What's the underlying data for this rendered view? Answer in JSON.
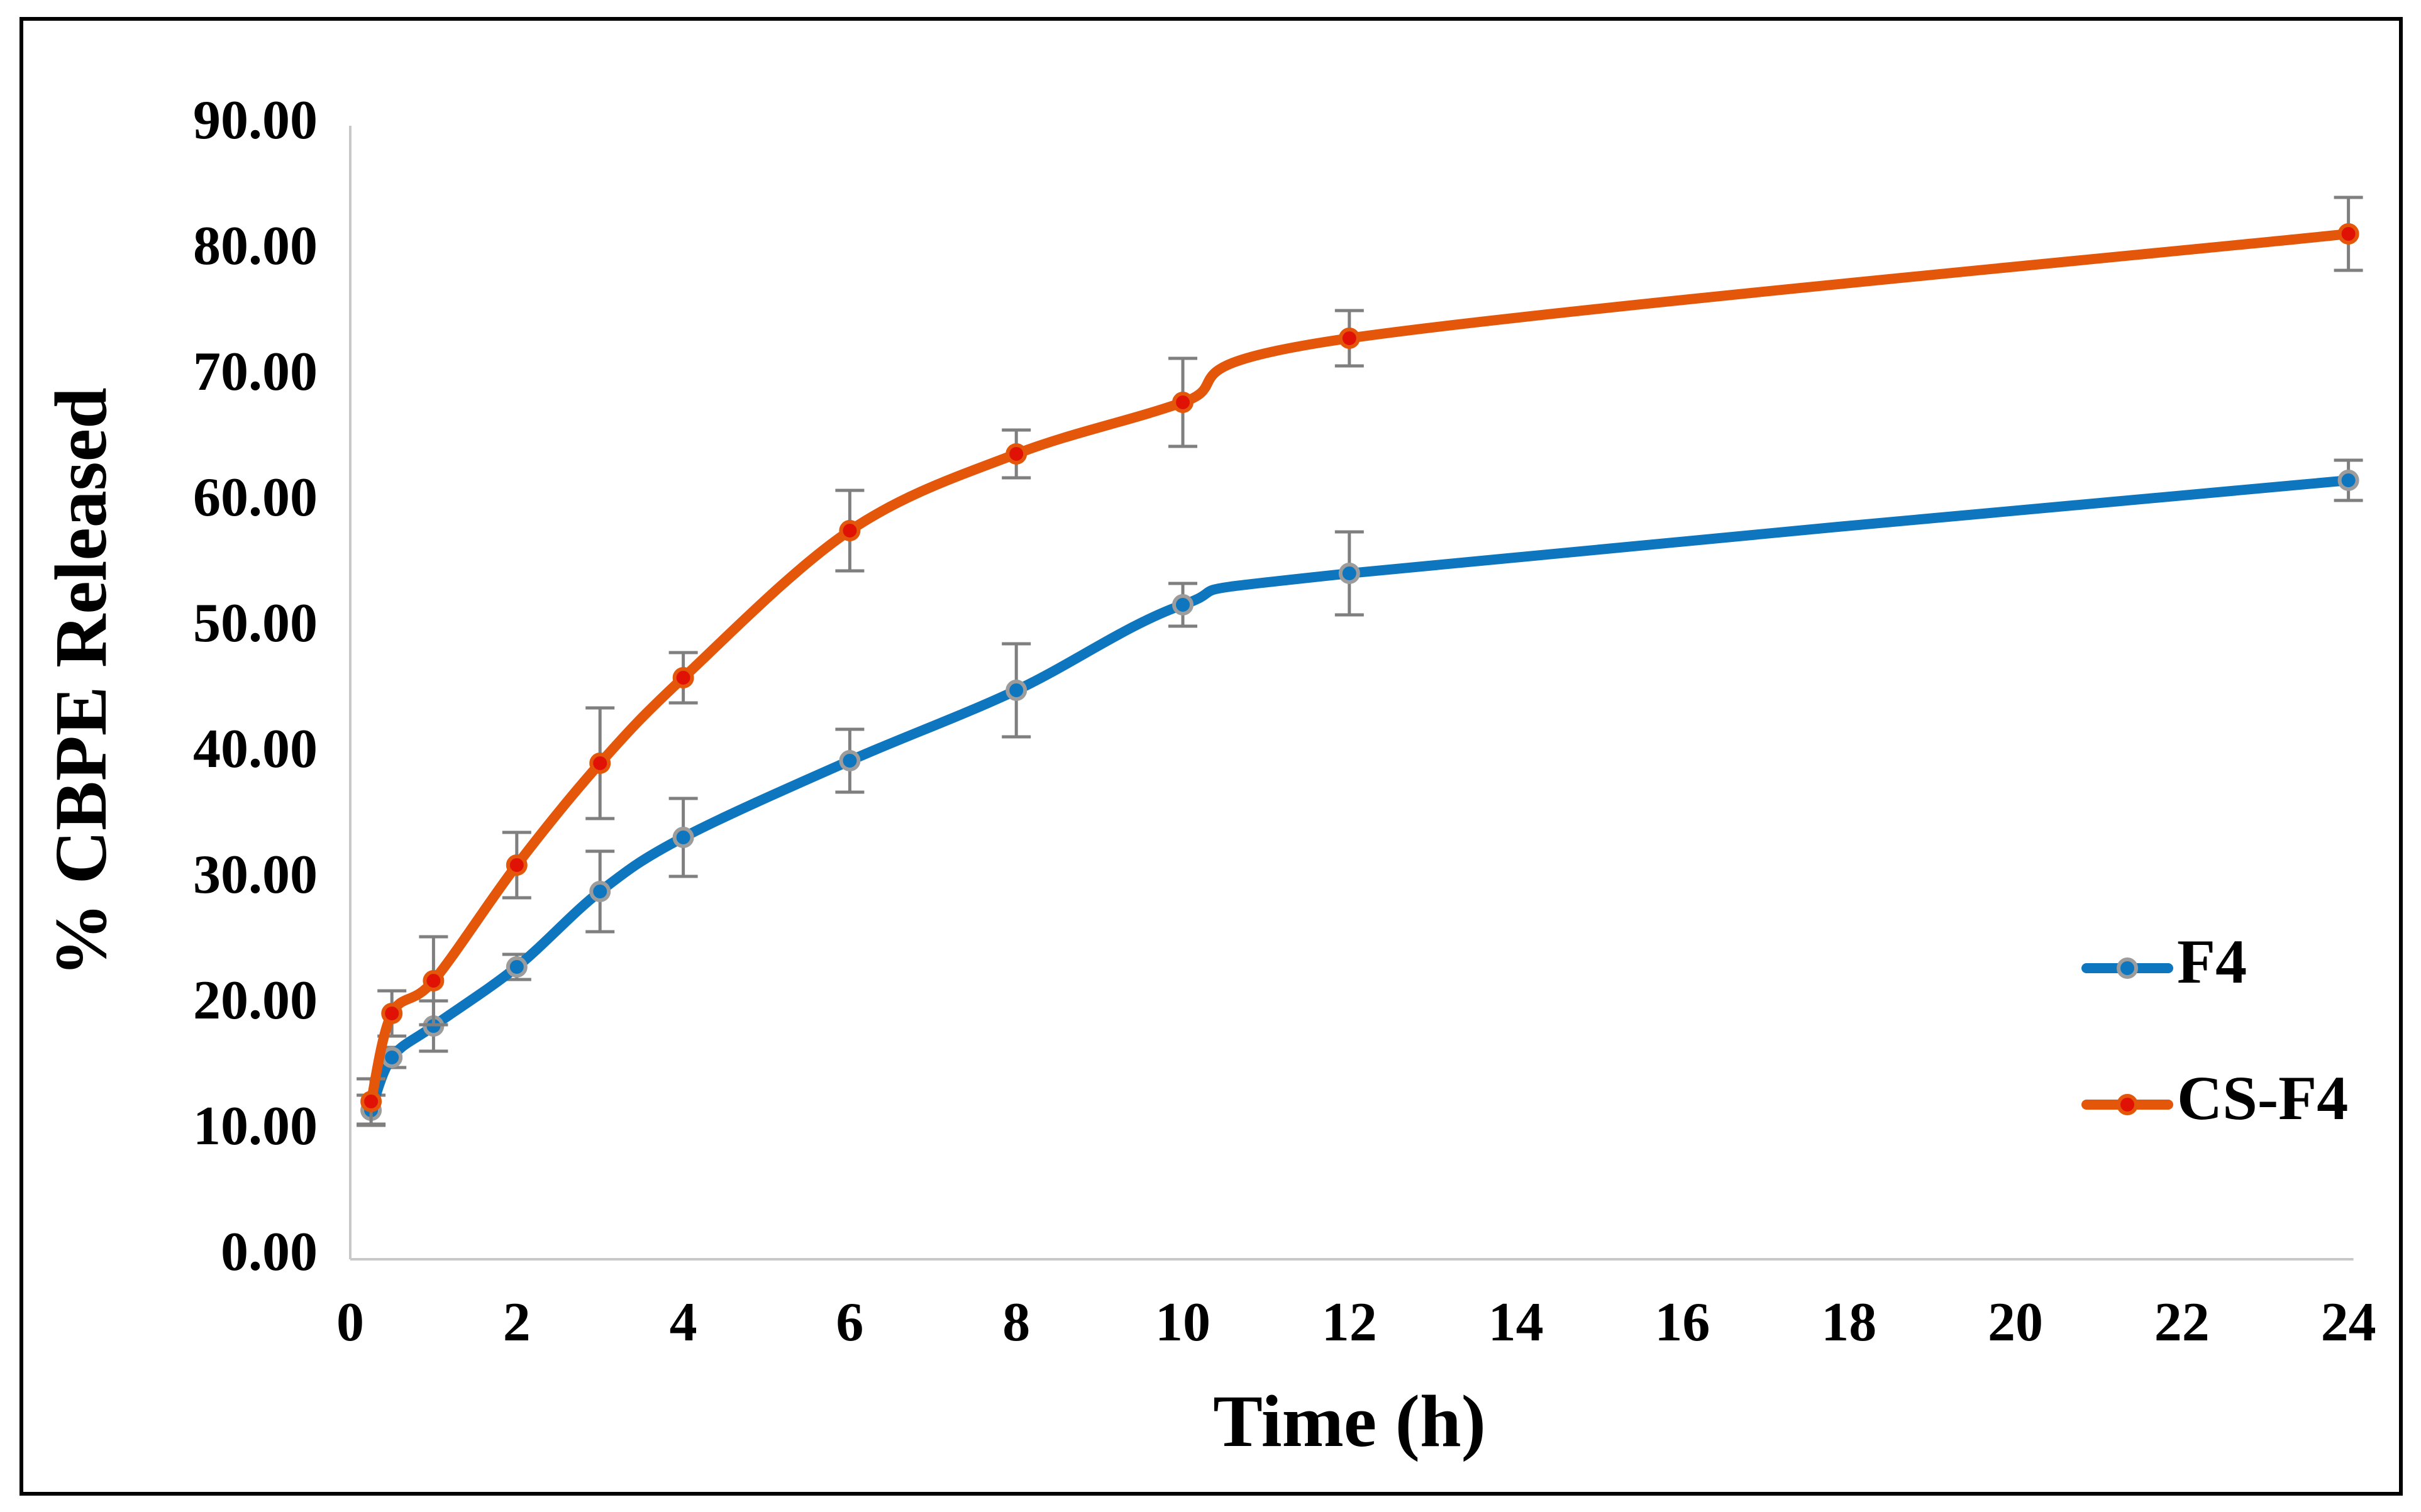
{
  "figure": {
    "background": "#FFFFFF",
    "border_color": "#000000",
    "axis_line_color": "#C8C8C8",
    "error_bar_color": "#7F7F7F",
    "text_color": "#000000"
  },
  "chart_data": {
    "type": "line",
    "title": "",
    "xlabel": "Time (h)",
    "ylabel": "% CBPE Released",
    "x": [
      0.25,
      0.5,
      1,
      2,
      3,
      4,
      6,
      8,
      10,
      12,
      24
    ],
    "series": [
      {
        "name": "F4",
        "color": "#0E76BE",
        "marker_fill": "#0E76BE",
        "marker_ring": "#9C9C9C",
        "values": [
          11.7,
          15.9,
          18.4,
          23.1,
          29.1,
          33.4,
          39.5,
          45.1,
          51.9,
          54.4,
          61.8
        ],
        "errors": [
          1.2,
          0.8,
          2.0,
          1.0,
          3.2,
          3.1,
          2.5,
          3.7,
          1.7,
          3.3,
          1.6
        ]
      },
      {
        "name": "CS-F4",
        "color": "#E4570B",
        "marker_fill": "#E01206",
        "marker_ring": "#E4570B",
        "values": [
          12.4,
          19.4,
          22.0,
          31.2,
          39.3,
          46.1,
          57.8,
          63.9,
          68.0,
          73.1,
          81.4
        ],
        "errors": [
          1.8,
          1.8,
          3.5,
          2.6,
          4.4,
          2.0,
          3.2,
          1.9,
          3.5,
          2.2,
          2.9
        ]
      }
    ],
    "xlim": [
      0,
      24
    ],
    "ylim": [
      0,
      90
    ],
    "x_tick_values": [
      0,
      2,
      4,
      6,
      8,
      10,
      12,
      14,
      16,
      18,
      20,
      22,
      24
    ],
    "x_tick_labels": [
      "0",
      "2",
      "4",
      "6",
      "8",
      "10",
      "12",
      "14",
      "16",
      "18",
      "20",
      "22",
      "24"
    ],
    "y_tick_values": [
      0,
      10,
      20,
      30,
      40,
      50,
      60,
      70,
      80,
      90
    ],
    "y_tick_labels": [
      "0.00",
      "10.00",
      "20.00",
      "30.00",
      "40.00",
      "50.00",
      "60.00",
      "70.00",
      "80.00",
      "90.00"
    ],
    "grid": false,
    "smooth": true,
    "legend_position": "right"
  }
}
